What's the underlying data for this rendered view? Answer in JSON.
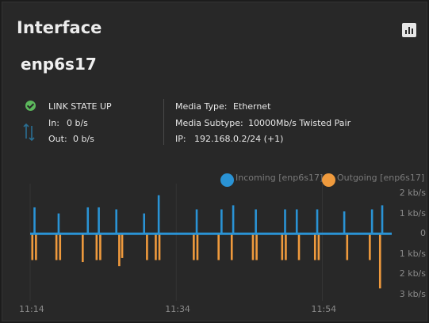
{
  "widget": {
    "title": "Interface",
    "chart_button_icon": "bar-chart-icon"
  },
  "interface": {
    "name": "enp6s17",
    "link_state": "LINK STATE UP",
    "in_label": "In:",
    "in_value": "0 b/s",
    "out_label": "Out:",
    "out_value": "0 b/s",
    "media_type_label": "Media Type:",
    "media_type_value": "Ethernet",
    "media_subtype_label": "Media Subtype:",
    "media_subtype_value": "10000Mb/s Twisted Pair",
    "ip_label": "IP:",
    "ip_value": "192.168.0.2/24 (+1)"
  },
  "colors": {
    "incoming": "#2a93d5",
    "outgoing": "#ef9a3d",
    "link_up": "#5cb85c"
  },
  "chart_data": {
    "type": "line",
    "legend_position": "top-right",
    "series": [
      {
        "name": "Incoming [enp6s17]",
        "spikes": [
          {
            "minute": 0.6,
            "value": 1.3
          },
          {
            "minute": 3.9,
            "value": 1.0
          },
          {
            "minute": 7.9,
            "value": 1.3
          },
          {
            "minute": 9.4,
            "value": 1.3
          },
          {
            "minute": 11.8,
            "value": 1.2
          },
          {
            "minute": 15.6,
            "value": 1.0
          },
          {
            "minute": 17.6,
            "value": 1.9
          },
          {
            "minute": 22.8,
            "value": 1.2
          },
          {
            "minute": 26.2,
            "value": 1.2
          },
          {
            "minute": 27.8,
            "value": 1.4
          },
          {
            "minute": 30.9,
            "value": 1.2
          },
          {
            "minute": 34.9,
            "value": 1.2
          },
          {
            "minute": 36.5,
            "value": 1.2
          },
          {
            "minute": 39.3,
            "value": 1.2
          },
          {
            "minute": 43.0,
            "value": 1.1
          },
          {
            "minute": 46.8,
            "value": 1.2
          },
          {
            "minute": 48.2,
            "value": 1.4
          }
        ]
      },
      {
        "name": "Outgoing [enp6s17]",
        "spikes": [
          {
            "minute": 0.3,
            "value": -1.3
          },
          {
            "minute": 0.8,
            "value": -1.3
          },
          {
            "minute": 3.6,
            "value": -1.3
          },
          {
            "minute": 4.1,
            "value": -1.3
          },
          {
            "minute": 7.2,
            "value": -1.4
          },
          {
            "minute": 9.1,
            "value": -1.3
          },
          {
            "minute": 9.6,
            "value": -1.3
          },
          {
            "minute": 12.2,
            "value": -1.6
          },
          {
            "minute": 12.6,
            "value": -1.2
          },
          {
            "minute": 16.0,
            "value": -1.3
          },
          {
            "minute": 17.2,
            "value": -1.3
          },
          {
            "minute": 17.7,
            "value": -1.3
          },
          {
            "minute": 22.4,
            "value": -1.3
          },
          {
            "minute": 22.9,
            "value": -1.3
          },
          {
            "minute": 25.8,
            "value": -1.3
          },
          {
            "minute": 27.6,
            "value": -1.3
          },
          {
            "minute": 30.5,
            "value": -1.3
          },
          {
            "minute": 31.0,
            "value": -1.3
          },
          {
            "minute": 34.5,
            "value": -1.3
          },
          {
            "minute": 35.0,
            "value": -1.3
          },
          {
            "minute": 36.8,
            "value": -1.3
          },
          {
            "minute": 39.0,
            "value": -1.3
          },
          {
            "minute": 39.5,
            "value": -1.3
          },
          {
            "minute": 43.4,
            "value": -1.3
          },
          {
            "minute": 46.5,
            "value": -1.3
          },
          {
            "minute": 47.9,
            "value": -2.7
          }
        ]
      }
    ],
    "baseline": 0,
    "ylim": [
      -3,
      2
    ],
    "y_unit": "kb/s",
    "x_range_minutes": [
      0,
      49.5
    ],
    "yticks": [
      {
        "value": 2,
        "label": "2 kb/s"
      },
      {
        "value": 1,
        "label": "1 kb/s"
      },
      {
        "value": 0,
        "label": "0"
      },
      {
        "value": -1,
        "label": "1 kb/s"
      },
      {
        "value": -2,
        "label": "2 kb/s"
      },
      {
        "value": -3,
        "label": "3 kb/s"
      }
    ],
    "xticks": [
      {
        "minute": 0,
        "label": "11:14"
      },
      {
        "minute": 20,
        "label": "11:34"
      },
      {
        "minute": 40,
        "label": "11:54"
      }
    ]
  }
}
